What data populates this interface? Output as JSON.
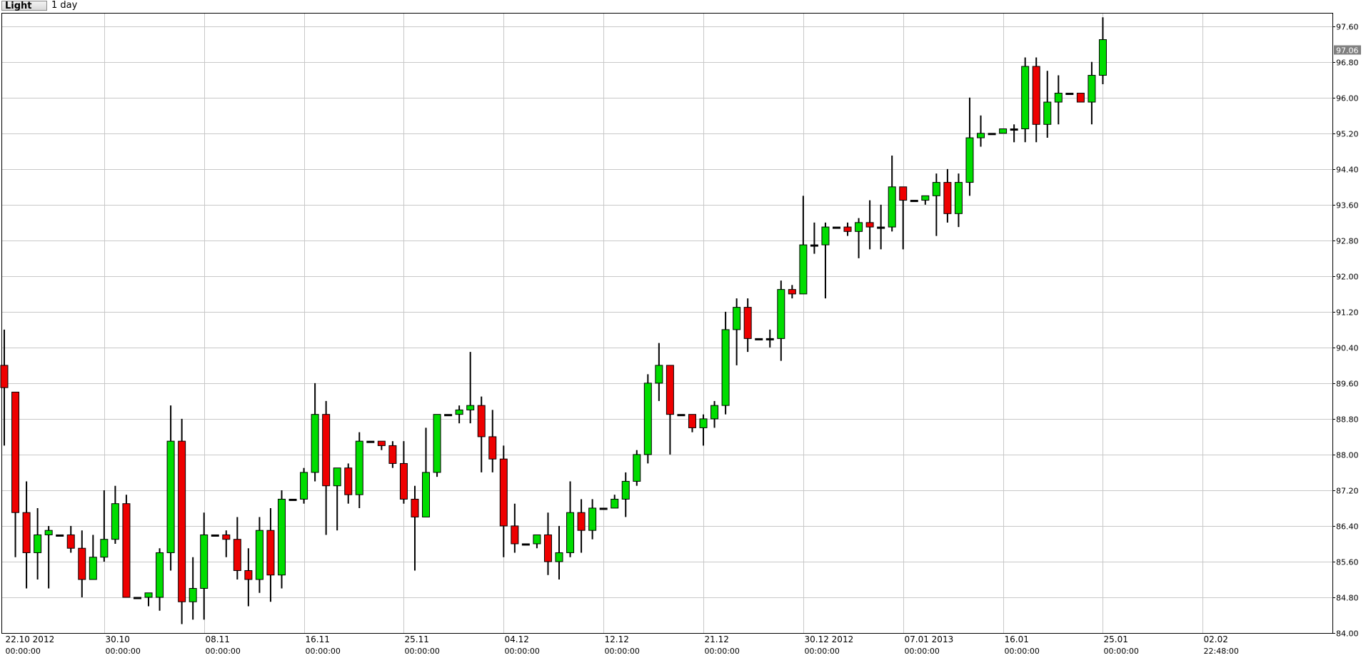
{
  "toolbar": {
    "style_label": "Light",
    "period_label": "1 day"
  },
  "colors": {
    "up": "#00dd00",
    "down": "#ee0000",
    "grid": "#c8c8c8",
    "axis": "#000000",
    "price_marker_bg": "#808080"
  },
  "chart_data": {
    "type": "candlestick",
    "title": "",
    "ylim": [
      84.0,
      97.9
    ],
    "grid": true,
    "y_ticks": [
      "84.00",
      "84.80",
      "85.60",
      "86.40",
      "87.20",
      "88.00",
      "88.80",
      "89.60",
      "90.40",
      "91.20",
      "92.00",
      "92.80",
      "93.60",
      "94.40",
      "95.20",
      "96.00",
      "96.80",
      "97.60"
    ],
    "x_labels": [
      {
        "index": 0,
        "date": "22.10 2012",
        "time": "00:00:00"
      },
      {
        "index": 9,
        "date": "30.10",
        "time": "00:00:00"
      },
      {
        "index": 18,
        "date": "08.11",
        "time": "00:00:00"
      },
      {
        "index": 27,
        "date": "16.11",
        "time": "00:00:00"
      },
      {
        "index": 36,
        "date": "25.11",
        "time": "00:00:00"
      },
      {
        "index": 45,
        "date": "04.12",
        "time": "00:00:00"
      },
      {
        "index": 54,
        "date": "12.12",
        "time": "00:00:00"
      },
      {
        "index": 63,
        "date": "21.12",
        "time": "00:00:00"
      },
      {
        "index": 72,
        "date": "30.12 2012",
        "time": "00:00:00"
      },
      {
        "index": 81,
        "date": "07.01 2013",
        "time": "00:00:00"
      },
      {
        "index": 90,
        "date": "16.01",
        "time": "00:00:00"
      },
      {
        "index": 99,
        "date": "25.01",
        "time": "00:00:00"
      },
      {
        "index": 108,
        "date": "02.02",
        "time": "22:48:00"
      }
    ],
    "last_price": "97.06",
    "candles": [
      [
        90.0,
        90.8,
        88.2,
        89.5
      ],
      [
        89.4,
        89.4,
        85.7,
        86.7
      ],
      [
        86.7,
        87.4,
        85.0,
        85.8
      ],
      [
        85.8,
        86.8,
        85.2,
        86.2
      ],
      [
        86.2,
        86.4,
        85.0,
        86.3
      ],
      [
        86.2,
        86.2,
        86.2,
        86.2
      ],
      [
        86.2,
        86.4,
        85.8,
        85.9
      ],
      [
        85.9,
        86.3,
        84.8,
        85.2
      ],
      [
        85.2,
        86.2,
        85.2,
        85.7
      ],
      [
        85.7,
        87.2,
        85.6,
        86.1
      ],
      [
        86.1,
        87.3,
        86.0,
        86.9
      ],
      [
        86.9,
        87.1,
        84.8,
        84.8
      ],
      [
        84.8,
        84.8,
        84.8,
        84.8
      ],
      [
        84.8,
        84.9,
        84.6,
        84.9
      ],
      [
        84.8,
        85.9,
        84.5,
        85.8
      ],
      [
        85.8,
        89.1,
        85.4,
        88.3
      ],
      [
        88.3,
        88.8,
        84.2,
        84.7
      ],
      [
        84.7,
        85.7,
        84.3,
        85.0
      ],
      [
        85.0,
        86.7,
        84.3,
        86.2
      ],
      [
        86.2,
        86.2,
        86.2,
        86.2
      ],
      [
        86.2,
        86.3,
        85.7,
        86.1
      ],
      [
        86.1,
        86.6,
        85.2,
        85.4
      ],
      [
        85.4,
        85.9,
        84.6,
        85.2
      ],
      [
        85.2,
        86.6,
        84.9,
        86.3
      ],
      [
        86.3,
        86.8,
        84.7,
        85.3
      ],
      [
        85.3,
        87.2,
        85.0,
        87.0
      ],
      [
        87.0,
        87.0,
        87.0,
        87.0
      ],
      [
        87.0,
        87.7,
        86.9,
        87.6
      ],
      [
        87.6,
        89.6,
        87.4,
        88.9
      ],
      [
        88.9,
        89.2,
        86.2,
        87.3
      ],
      [
        87.3,
        87.7,
        86.3,
        87.7
      ],
      [
        87.7,
        87.8,
        86.9,
        87.1
      ],
      [
        87.1,
        88.5,
        86.8,
        88.3
      ],
      [
        88.3,
        88.3,
        88.3,
        88.3
      ],
      [
        88.3,
        88.3,
        88.1,
        88.2
      ],
      [
        88.2,
        88.3,
        87.7,
        87.8
      ],
      [
        87.8,
        88.3,
        86.9,
        87.0
      ],
      [
        87.0,
        87.3,
        85.4,
        86.6
      ],
      [
        86.6,
        88.6,
        86.6,
        87.6
      ],
      [
        87.6,
        88.9,
        87.5,
        88.9
      ],
      [
        88.9,
        88.9,
        88.9,
        88.9
      ],
      [
        88.9,
        89.1,
        88.7,
        89.0
      ],
      [
        89.0,
        90.3,
        88.7,
        89.1
      ],
      [
        89.1,
        89.3,
        87.6,
        88.4
      ],
      [
        88.4,
        89.0,
        87.6,
        87.9
      ],
      [
        87.9,
        88.2,
        85.7,
        86.4
      ],
      [
        86.4,
        86.9,
        85.8,
        86.0
      ],
      [
        86.0,
        86.0,
        86.0,
        86.0
      ],
      [
        86.0,
        86.2,
        85.9,
        86.2
      ],
      [
        86.2,
        86.7,
        85.3,
        85.6
      ],
      [
        85.6,
        86.4,
        85.2,
        85.8
      ],
      [
        85.8,
        87.4,
        85.7,
        86.7
      ],
      [
        86.7,
        87.0,
        85.8,
        86.3
      ],
      [
        86.3,
        87.0,
        86.1,
        86.8
      ],
      [
        86.8,
        86.8,
        86.8,
        86.8
      ],
      [
        86.8,
        87.1,
        86.8,
        87.0
      ],
      [
        87.0,
        87.6,
        86.6,
        87.4
      ],
      [
        87.4,
        88.1,
        87.3,
        88.0
      ],
      [
        88.0,
        89.8,
        87.8,
        89.6
      ],
      [
        89.6,
        90.5,
        89.2,
        90.0
      ],
      [
        90.0,
        90.0,
        88.0,
        88.9
      ],
      [
        88.9,
        88.9,
        88.9,
        88.9
      ],
      [
        88.9,
        88.9,
        88.5,
        88.6
      ],
      [
        88.6,
        88.9,
        88.2,
        88.8
      ],
      [
        88.8,
        89.2,
        88.6,
        89.1
      ],
      [
        89.1,
        91.2,
        88.9,
        90.8
      ],
      [
        90.8,
        91.5,
        90.0,
        91.3
      ],
      [
        91.3,
        91.5,
        90.3,
        90.6
      ],
      [
        90.6,
        90.6,
        90.6,
        90.6
      ],
      [
        90.6,
        90.8,
        90.4,
        90.6
      ],
      [
        90.6,
        91.9,
        90.1,
        91.7
      ],
      [
        91.7,
        91.8,
        91.5,
        91.6
      ],
      [
        91.6,
        93.8,
        91.6,
        92.7
      ],
      [
        92.7,
        93.2,
        92.5,
        92.7
      ],
      [
        92.7,
        93.2,
        91.5,
        93.1
      ],
      [
        93.1,
        93.1,
        93.1,
        93.1
      ],
      [
        93.1,
        93.2,
        92.9,
        93.0
      ],
      [
        93.0,
        93.3,
        92.4,
        93.2
      ],
      [
        93.2,
        93.7,
        92.6,
        93.1
      ],
      [
        93.1,
        93.6,
        92.6,
        93.1
      ],
      [
        93.1,
        94.7,
        93.0,
        94.0
      ],
      [
        94.0,
        94.0,
        92.6,
        93.7
      ],
      [
        93.7,
        93.7,
        93.7,
        93.7
      ],
      [
        93.7,
        93.8,
        93.6,
        93.8
      ],
      [
        93.8,
        94.3,
        92.9,
        94.1
      ],
      [
        94.1,
        94.4,
        93.2,
        93.4
      ],
      [
        93.4,
        94.3,
        93.1,
        94.1
      ],
      [
        94.1,
        96.0,
        93.8,
        95.1
      ],
      [
        95.1,
        95.6,
        94.9,
        95.2
      ],
      [
        95.2,
        95.2,
        95.2,
        95.2
      ],
      [
        95.2,
        95.3,
        95.2,
        95.3
      ],
      [
        95.3,
        95.4,
        95.0,
        95.3
      ],
      [
        95.3,
        96.9,
        95.0,
        96.7
      ],
      [
        96.7,
        96.9,
        95.0,
        95.4
      ],
      [
        95.4,
        96.6,
        95.1,
        95.9
      ],
      [
        95.9,
        96.5,
        95.4,
        96.1
      ],
      [
        96.1,
        96.1,
        96.1,
        96.1
      ],
      [
        96.1,
        96.1,
        95.9,
        95.9
      ],
      [
        95.9,
        96.8,
        95.4,
        96.5
      ],
      [
        96.5,
        97.8,
        96.3,
        97.3
      ]
    ]
  }
}
